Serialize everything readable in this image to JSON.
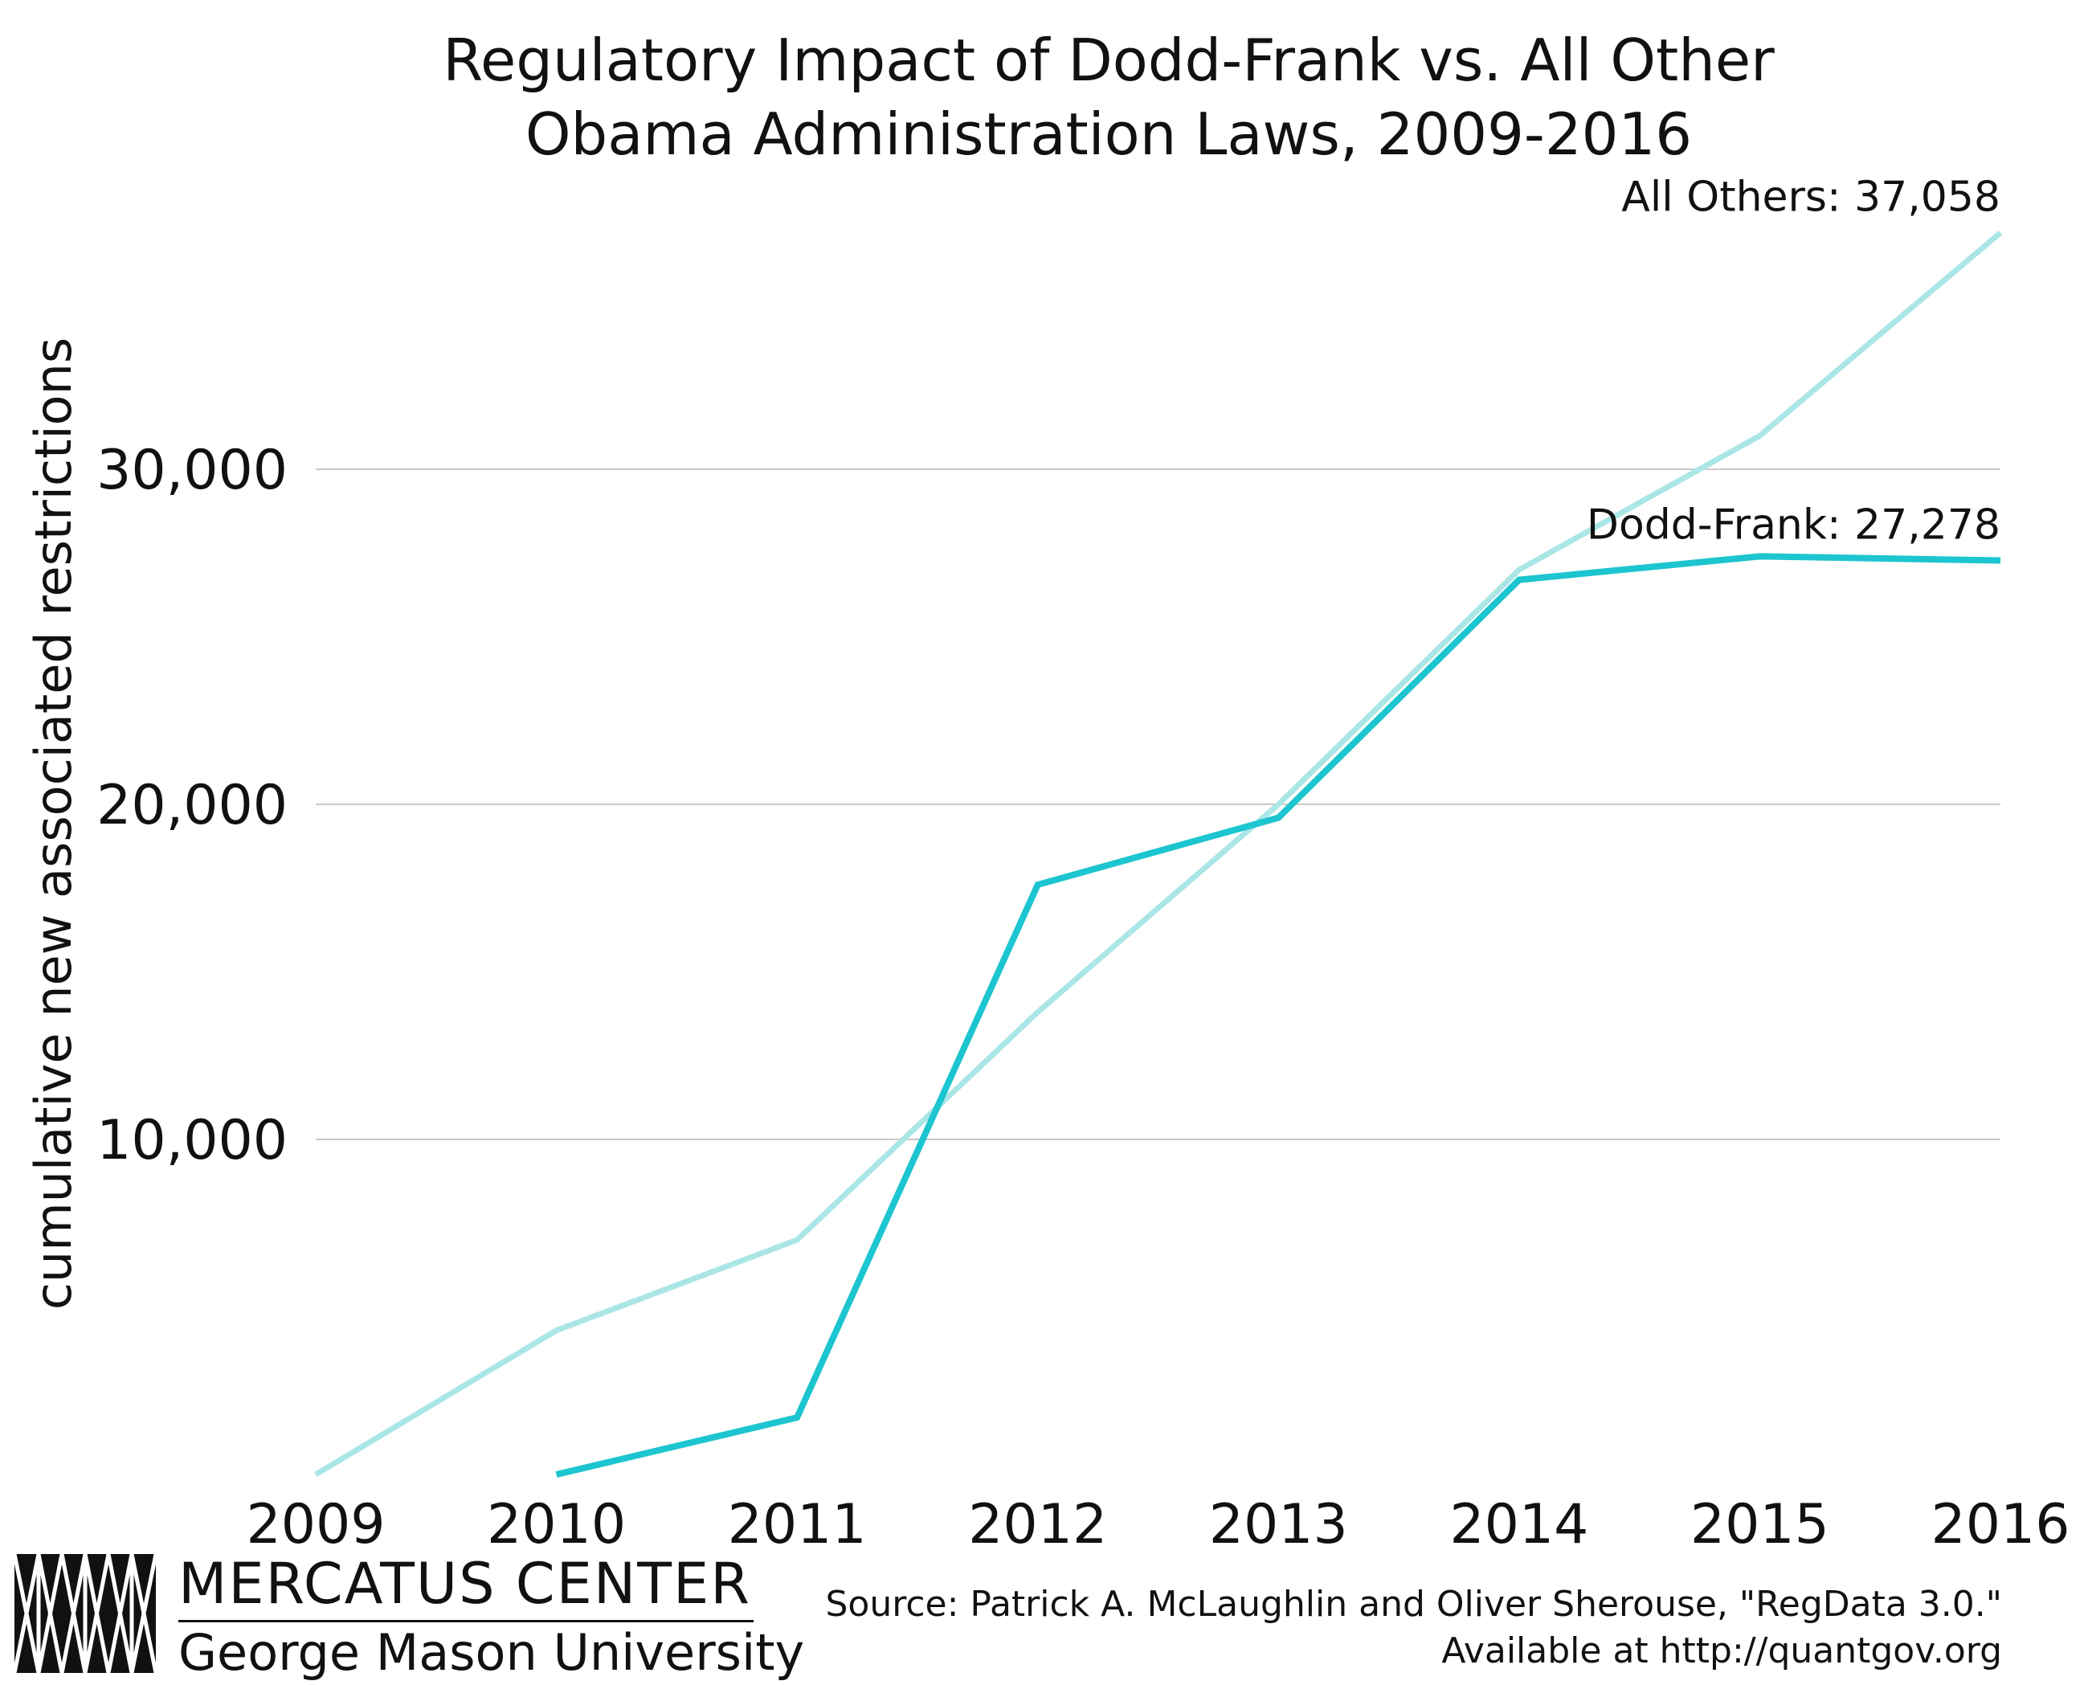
{
  "chart_data": {
    "type": "line",
    "title_lines": [
      "Regulatory Impact of Dodd-Frank vs. All Other",
      "Obama Administration Laws, 2009-2016"
    ],
    "ylabel": "cumulative new associated restrictions",
    "xlabel": "",
    "x": [
      2009,
      2010,
      2011,
      2012,
      2013,
      2014,
      2015,
      2016
    ],
    "x_tick_labels": [
      "2009",
      "2010",
      "2011",
      "2012",
      "2013",
      "2014",
      "2015",
      "2016"
    ],
    "y_ticks": [
      10000,
      20000,
      30000
    ],
    "y_tick_labels": [
      "10,000",
      "20,000",
      "30,000"
    ],
    "ylim": [
      0,
      40000
    ],
    "grid": "horizontal",
    "legend": "none",
    "series": [
      {
        "name": "All Others",
        "end_label": "All Others: 37,058",
        "color": "#abe6e6",
        "x": [
          2009,
          2010,
          2011,
          2012,
          2013,
          2014,
          2015,
          2016
        ],
        "values": [
          0,
          4300,
          7000,
          13800,
          20000,
          27000,
          31000,
          37058
        ]
      },
      {
        "name": "Dodd-Frank",
        "end_label": "Dodd-Frank: 27,278",
        "color": "#1cc5cf",
        "x": [
          2010,
          2011,
          2012,
          2013,
          2014,
          2015,
          2016
        ],
        "values": [
          0,
          1700,
          17600,
          19600,
          26700,
          27400,
          27278
        ]
      }
    ]
  },
  "footer": {
    "logo_org": "MERCATUS CENTER",
    "logo_univ": "George Mason University",
    "source_line1": "Source: Patrick A. McLaughlin and Oliver Sherouse, \"RegData 3.0.\"",
    "source_line2": "Available at http://quantgov.org"
  }
}
